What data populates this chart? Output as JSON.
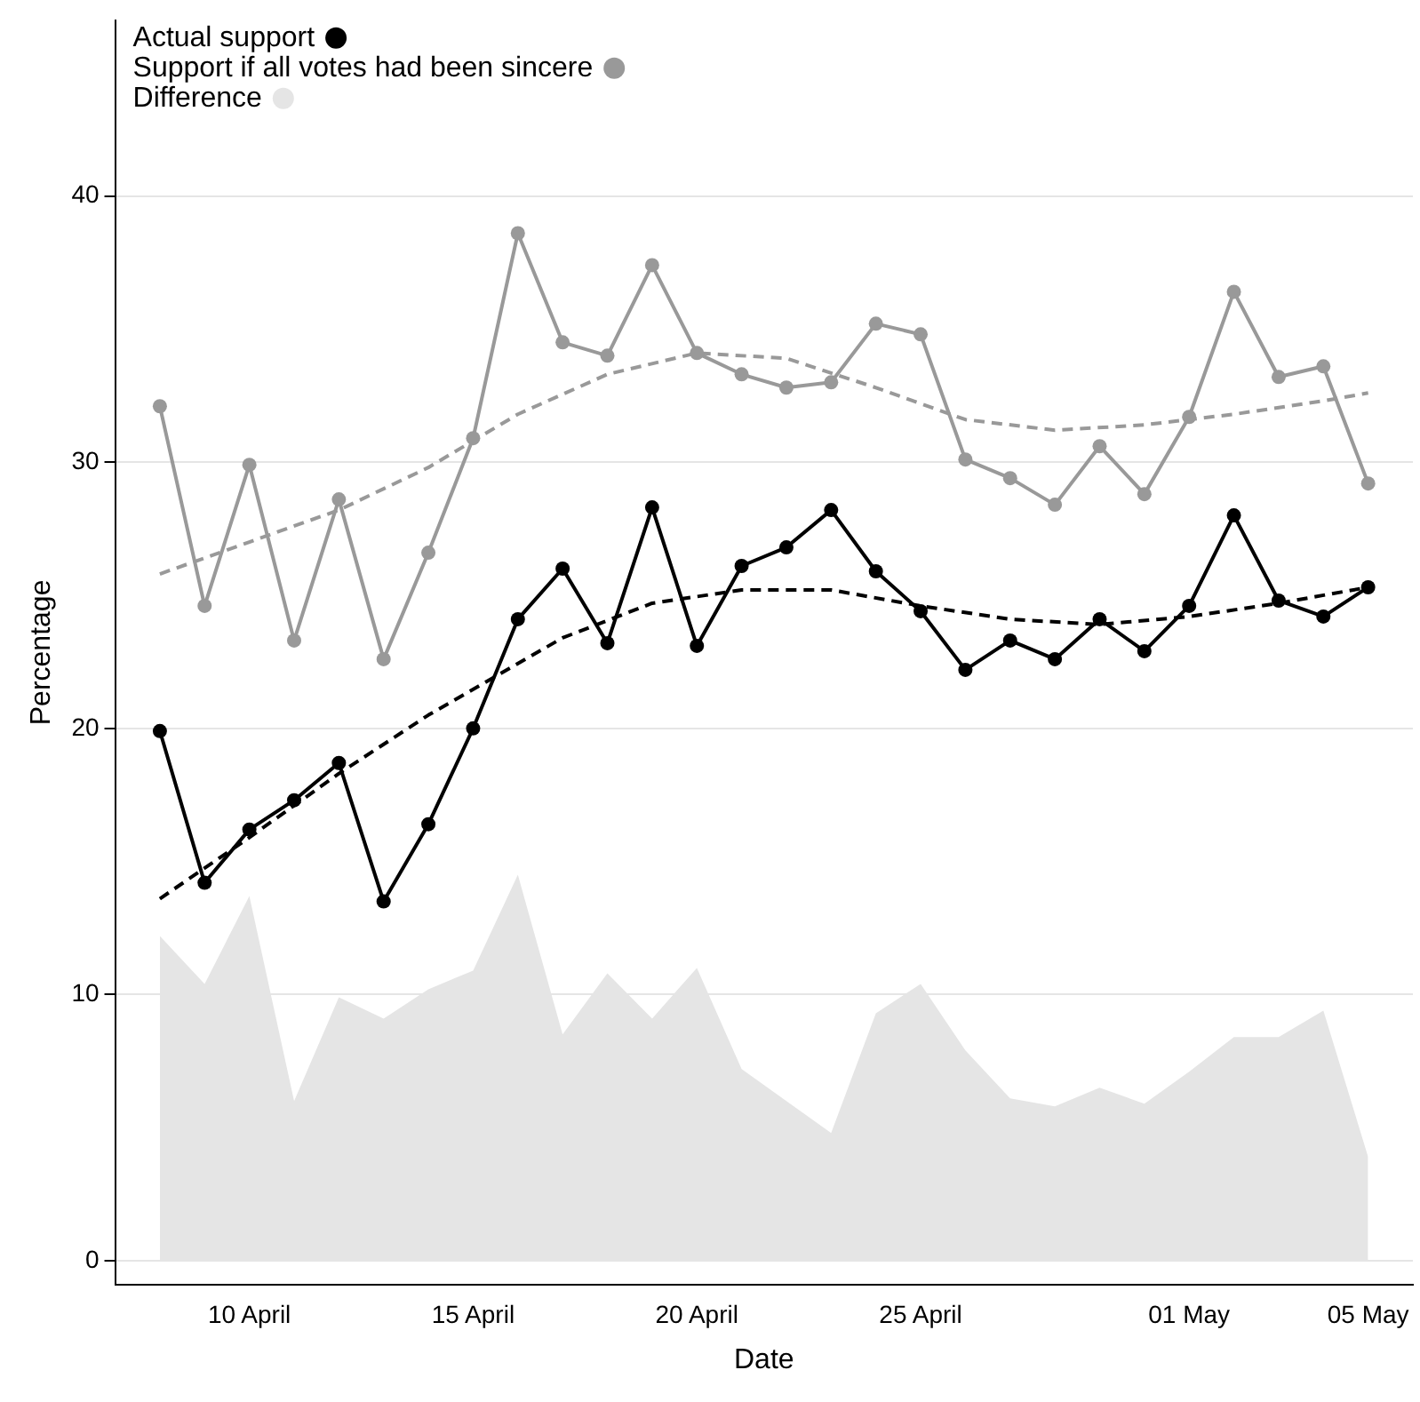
{
  "chart_data": {
    "type": "line",
    "xlabel": "Date",
    "ylabel": "Percentage",
    "x": [
      "--04-08",
      "--04-09",
      "--04-10",
      "--04-11",
      "--04-12",
      "--04-13",
      "--04-14",
      "--04-15",
      "--04-16",
      "--04-17",
      "--04-18",
      "--04-19",
      "--04-20",
      "--04-21",
      "--04-22",
      "--04-23",
      "--04-24",
      "--04-25",
      "--04-26",
      "--04-27",
      "--04-28",
      "--04-29",
      "--04-30",
      "--05-01",
      "--05-02",
      "--05-03",
      "--05-04",
      "--05-05"
    ],
    "series": [
      {
        "name": "Difference",
        "type": "area",
        "color": "#e5e5e5",
        "values": [
          12.2,
          10.4,
          13.7,
          6.0,
          9.9,
          9.1,
          10.2,
          10.9,
          14.5,
          8.5,
          10.8,
          9.1,
          11.0,
          7.2,
          6.0,
          4.8,
          9.3,
          10.4,
          7.9,
          6.1,
          5.8,
          6.5,
          5.9,
          7.1,
          8.4,
          8.4,
          9.4,
          3.9
        ]
      },
      {
        "name": "Support if all votes had been sincere",
        "color": "#999999",
        "marker": "circle",
        "line_style": "solid",
        "values": [
          32.1,
          24.6,
          29.9,
          23.3,
          28.6,
          22.6,
          26.6,
          30.9,
          38.6,
          34.5,
          34.0,
          37.4,
          34.1,
          33.3,
          32.8,
          33.0,
          35.2,
          34.8,
          30.1,
          29.4,
          28.4,
          30.6,
          28.8,
          31.7,
          36.4,
          33.2,
          33.6,
          29.2
        ]
      },
      {
        "name": "Actual support",
        "color": "#000000",
        "marker": "circle",
        "line_style": "solid",
        "values": [
          19.9,
          14.2,
          16.2,
          17.3,
          18.7,
          13.5,
          16.4,
          20.0,
          24.1,
          26.0,
          23.2,
          28.3,
          23.1,
          26.1,
          26.8,
          28.2,
          25.9,
          24.4,
          22.2,
          23.3,
          22.6,
          24.1,
          22.9,
          24.6,
          28.0,
          24.8,
          24.2,
          25.3
        ]
      },
      {
        "type": "line",
        "color": "#999999",
        "marker": "none",
        "line_style": "dashed",
        "x": [
          "--04-08",
          "--04-10",
          "--04-12",
          "--04-14",
          "--04-16",
          "--04-18",
          "--04-20",
          "--04-22",
          "--04-24",
          "--04-26",
          "--04-28",
          "--04-30",
          "--05-02",
          "--05-04",
          "--05-05"
        ],
        "values": [
          25.8,
          27.0,
          28.2,
          29.8,
          31.8,
          33.3,
          34.1,
          33.9,
          32.8,
          31.6,
          31.2,
          31.4,
          31.8,
          32.3,
          32.6
        ]
      },
      {
        "type": "line",
        "color": "#000000",
        "marker": "none",
        "line_style": "dashed",
        "x": [
          "--04-08",
          "--04-10",
          "--04-12",
          "--04-14",
          "--04-17",
          "--04-19",
          "--04-21",
          "--04-23",
          "--04-25",
          "--04-27",
          "--04-29",
          "--05-01",
          "--05-03",
          "--05-05"
        ],
        "values": [
          13.6,
          15.9,
          18.3,
          20.5,
          23.4,
          24.7,
          25.2,
          25.2,
          24.6,
          24.1,
          23.9,
          24.2,
          24.7,
          25.3
        ]
      }
    ],
    "xlim": [
      "--04-07",
      "--05-06"
    ],
    "xticks": [
      {
        "value": "--04-10",
        "label": "10 April"
      },
      {
        "value": "--04-15",
        "label": "15 April"
      },
      {
        "value": "--04-20",
        "label": "20 April"
      },
      {
        "value": "--04-25",
        "label": "25 April"
      },
      {
        "value": "--05-01",
        "label": "01 May"
      },
      {
        "value": "--05-05",
        "label": "05 May"
      }
    ],
    "ylim": [
      -0.9,
      46.6
    ],
    "yticks": [
      0,
      10,
      20,
      30,
      40
    ],
    "grid": "y",
    "legend": "top left"
  }
}
